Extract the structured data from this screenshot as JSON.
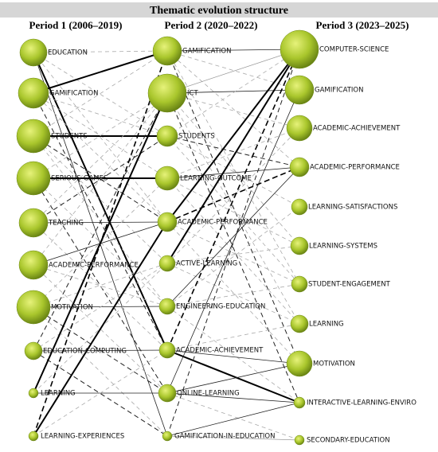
{
  "title": "Thematic evolution structure",
  "periods": [
    {
      "label": "Period 1 (2006–2019)",
      "nodes": [
        "EDUCATION",
        "GAMIFICATION",
        "STUDENTS",
        "SERIOUS-GAMES",
        "TEACHING",
        "ACADEMIC-PERFORMANCE",
        "MOTIVATION",
        "EDUCATION-COMPUTING",
        "LEARNING",
        "LEARNING-EXPERIENCES"
      ]
    },
    {
      "label": "Period 2 (2020–2022)",
      "nodes": [
        "GAMIFICATION",
        "ICT",
        "STUDENTS",
        "LEARNING-OUTCOME",
        "ACADEMIC-PERFORMANCE",
        "ACTIVE-LEARNING",
        "ENGINEERING-EDUCATION",
        "ACADEMIC-ACHIEVEMENT",
        "ONLINE-LEARNING",
        "GAMIFICATION-IN-EDUCATION"
      ]
    },
    {
      "label": "Period 3 (2023–2025)",
      "nodes": [
        "COMPUTER-SCIENCE",
        "GAMIFICATION",
        "ACADEMIC-ACHIEVEMENT",
        "ACADEMIC-PERFORMANCE",
        "LEARNING-SATISFACTIONS",
        "LEARNING-SYSTEMS",
        "STUDENT-ENGAGEMENT",
        "LEARNING",
        "MOTIVATION",
        "INTERACTIVE-LEARNING-ENVIRO",
        "SECONDARY-EDUCATION"
      ]
    }
  ]
}
